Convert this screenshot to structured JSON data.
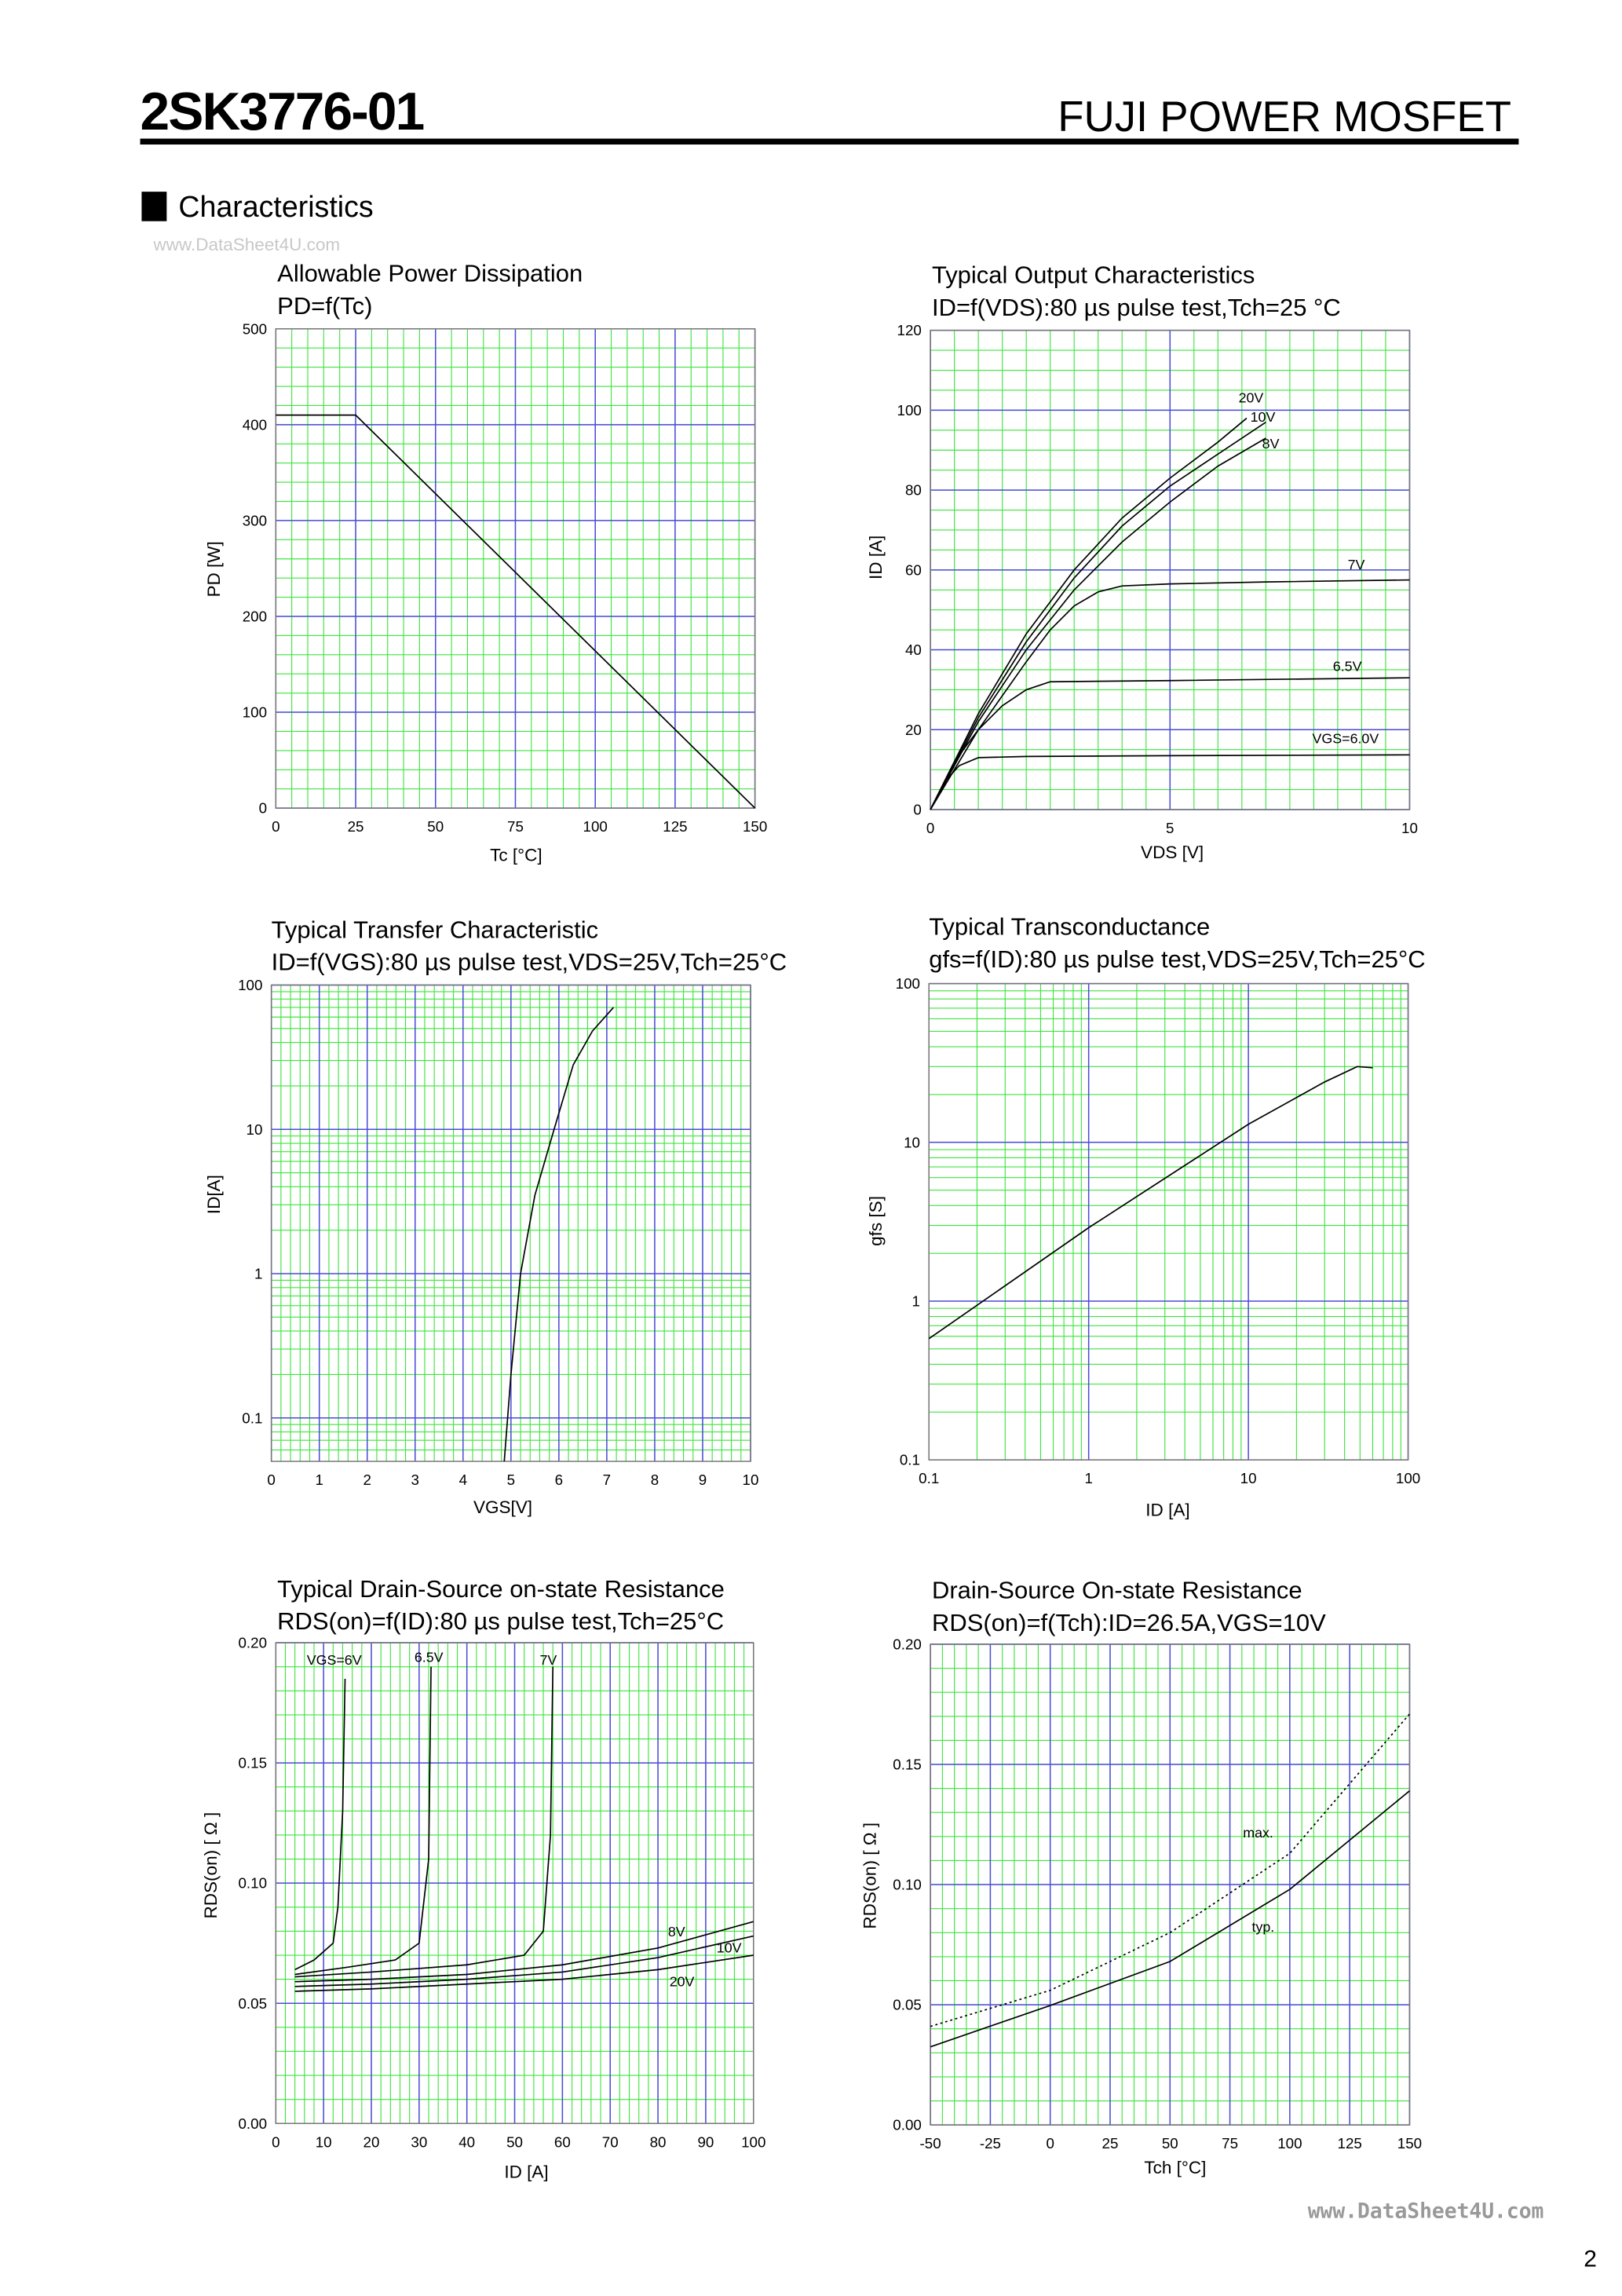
{
  "header": {
    "part_number": "2SK3776-01",
    "product": "FUJI POWER MOSFET"
  },
  "section": "Characteristics",
  "watermark": "www.DataSheet4U.com",
  "footer": {
    "watermark": "www.DataSheet4U.com",
    "page": "2"
  },
  "chart_data": [
    {
      "type": "line",
      "title": "Allowable Power Dissipation",
      "subtitle": "PD=f(Tc)",
      "x_label": "Tc [°C]",
      "y_label": "PD [W]",
      "xlim": [
        0,
        150
      ],
      "xticks": [
        0,
        25,
        50,
        75,
        100,
        125,
        150
      ],
      "ylim": [
        0,
        500
      ],
      "yticks": [
        0,
        100,
        200,
        300,
        400,
        500
      ],
      "grid": {
        "major_color": "#4a4ad8",
        "minor_color": "#3ee43e",
        "x_minor": 5,
        "y_minor": 5
      },
      "series": [
        {
          "color": "#000000",
          "x": [
            0,
            25,
            150
          ],
          "values": [
            410,
            410,
            0
          ]
        }
      ]
    },
    {
      "type": "line",
      "title": "Typical Output Characteristics",
      "subtitle": "ID=f(VDS):80 µs pulse test,Tch=25 °C",
      "x_label": "VDS [V]",
      "y_label": "ID [A]",
      "xlim": [
        0,
        10
      ],
      "xticks": [
        0,
        5,
        10
      ],
      "ylim": [
        0,
        120
      ],
      "yticks": [
        0,
        20,
        40,
        60,
        80,
        100,
        120
      ],
      "grid": {
        "major_color": "#4a4ad8",
        "minor_color": "#3ee43e",
        "x_minor": 10,
        "y_minor": 4
      },
      "series": [
        {
          "name": "20V",
          "color": "#000000",
          "x": [
            0,
            1,
            2,
            3,
            4,
            5,
            6,
            6.6
          ],
          "values": [
            0,
            24,
            44,
            60,
            73,
            83,
            92,
            98
          ]
        },
        {
          "name": "10V",
          "color": "#000000",
          "x": [
            0,
            1,
            2,
            3,
            4,
            5,
            6,
            7
          ],
          "values": [
            0,
            23,
            42,
            58,
            71,
            81,
            89,
            97
          ]
        },
        {
          "name": "8V",
          "color": "#000000",
          "x": [
            0,
            1,
            2,
            3,
            4,
            5,
            6,
            7
          ],
          "values": [
            0,
            22,
            40,
            55,
            67,
            77,
            86,
            93
          ]
        },
        {
          "name": "7V",
          "color": "#000000",
          "x": [
            0,
            1,
            2,
            2.5,
            3,
            3.5,
            4,
            5,
            7,
            10
          ],
          "values": [
            0,
            20,
            37,
            45,
            51,
            54.5,
            56,
            56.5,
            57,
            57.5
          ]
        },
        {
          "name": "6.5V",
          "color": "#000000",
          "x": [
            0,
            0.5,
            1,
            1.5,
            2,
            2.5,
            5,
            10
          ],
          "values": [
            0,
            12,
            20,
            26,
            30,
            32,
            32.3,
            33
          ]
        },
        {
          "name": "VGS=6.0V",
          "color": "#000000",
          "x": [
            0,
            0.3,
            0.6,
            1,
            2,
            5,
            10
          ],
          "values": [
            0,
            7,
            11,
            13,
            13.3,
            13.5,
            13.7
          ]
        }
      ]
    },
    {
      "type": "line",
      "title": "Typical Transfer Characteristic",
      "subtitle": "ID=f(VGS):80 µs pulse test,VDS=25V,Tch=25°C",
      "x_label": "VGS[V]",
      "y_label": "ID[A]",
      "xlim": [
        0,
        10
      ],
      "xticks": [
        0,
        1,
        2,
        3,
        4,
        5,
        6,
        7,
        8,
        9,
        10
      ],
      "ylim": [
        0.05,
        100
      ],
      "yticks": [
        0.1,
        1,
        10,
        100
      ],
      "ylog": true,
      "grid": {
        "major_color": "#4a4ad8",
        "minor_color": "#3ee43e",
        "x_minor": 5,
        "y_minor": 9
      },
      "series": [
        {
          "color": "#000000",
          "x": [
            4.86,
            5.0,
            5.2,
            5.5,
            5.9,
            6.3,
            6.7,
            7.14
          ],
          "values": [
            0.05,
            0.2,
            1,
            3.5,
            10,
            28,
            48,
            70
          ]
        }
      ]
    },
    {
      "type": "line",
      "title": "Typical Transconductance",
      "subtitle": "gfs=f(ID):80 µs pulse test,VDS=25V,Tch=25°C",
      "x_label": "ID [A]",
      "y_label": "gfs [S]",
      "xlim": [
        0.1,
        100
      ],
      "xticks": [
        0.1,
        1,
        10,
        100
      ],
      "xlog": true,
      "ylim": [
        0.1,
        100
      ],
      "yticks": [
        0.1,
        1,
        10,
        100
      ],
      "ylog": true,
      "grid": {
        "major_color": "#4a4ad8",
        "minor_color": "#3ee43e",
        "x_minor": 9,
        "y_minor": 9
      },
      "series": [
        {
          "color": "#000000",
          "x": [
            0.1,
            1,
            10,
            30,
            48,
            60
          ],
          "values": [
            0.58,
            2.9,
            13,
            24,
            30,
            29.5
          ]
        }
      ]
    },
    {
      "type": "line",
      "title": "Typical Drain-Source on-state Resistance",
      "subtitle": "RDS(on)=f(ID):80  µs pulse test,Tch=25°C",
      "x_label": "ID [A]",
      "y_label": "RDS(on) [ Ω ]",
      "xlim": [
        0,
        100
      ],
      "xticks": [
        0,
        10,
        20,
        30,
        40,
        50,
        60,
        70,
        80,
        90,
        100
      ],
      "ylim": [
        0,
        0.2
      ],
      "yticks": [
        {
          "value": 0,
          "label": "0.00"
        },
        {
          "value": 0.05,
          "label": "0.05"
        },
        {
          "value": 0.1,
          "label": "0.10"
        },
        {
          "value": 0.15,
          "label": "0.15"
        },
        {
          "value": 0.2,
          "label": "0.20"
        }
      ],
      "grid": {
        "major_color": "#4a4ad8",
        "minor_color": "#3ee43e",
        "x_minor": 5,
        "y_minor": 5
      },
      "series": [
        {
          "name": "VGS=6V",
          "color": "#000000",
          "x": [
            4,
            8,
            12,
            13,
            14,
            14.5
          ],
          "values": [
            0.064,
            0.068,
            0.075,
            0.09,
            0.13,
            0.185
          ]
        },
        {
          "name": "6.5V",
          "color": "#000000",
          "x": [
            4,
            15,
            25,
            30,
            32,
            32.5
          ],
          "values": [
            0.062,
            0.065,
            0.068,
            0.075,
            0.11,
            0.19
          ]
        },
        {
          "name": "7V",
          "color": "#000000",
          "x": [
            4,
            20,
            40,
            52,
            56,
            57.5,
            58
          ],
          "values": [
            0.061,
            0.063,
            0.066,
            0.07,
            0.08,
            0.12,
            0.19
          ]
        },
        {
          "name": "8V",
          "color": "#000000",
          "x": [
            4,
            20,
            40,
            60,
            80,
            100
          ],
          "values": [
            0.059,
            0.06,
            0.062,
            0.066,
            0.073,
            0.084
          ]
        },
        {
          "name": "10V",
          "color": "#000000",
          "x": [
            4,
            20,
            40,
            60,
            80,
            100
          ],
          "values": [
            0.057,
            0.058,
            0.06,
            0.063,
            0.069,
            0.078
          ]
        },
        {
          "name": "20V",
          "color": "#000000",
          "x": [
            4,
            20,
            40,
            60,
            80,
            100
          ],
          "values": [
            0.055,
            0.056,
            0.058,
            0.06,
            0.064,
            0.07
          ]
        }
      ]
    },
    {
      "type": "line",
      "title": "Drain-Source On-state Resistance",
      "subtitle": "RDS(on)=f(Tch):ID=26.5A,VGS=10V",
      "x_label": "Tch [°C]",
      "y_label": "RDS(on) [ Ω ]",
      "xlim": [
        -50,
        150
      ],
      "xticks": [
        -50,
        -25,
        0,
        25,
        50,
        75,
        100,
        125,
        150
      ],
      "ylim": [
        0,
        0.2
      ],
      "yticks": [
        {
          "value": 0,
          "label": "0.00"
        },
        {
          "value": 0.05,
          "label": "0.05"
        },
        {
          "value": 0.1,
          "label": "0.10"
        },
        {
          "value": 0.15,
          "label": "0.15"
        },
        {
          "value": 0.2,
          "label": "0.20"
        }
      ],
      "grid": {
        "major_color": "#4a4ad8",
        "minor_color": "#3ee43e",
        "x_minor": 5,
        "y_minor": 5
      },
      "series": [
        {
          "name": "max.",
          "color": "#000000",
          "dashed": true,
          "x": [
            -50,
            0,
            50,
            100,
            150
          ],
          "values": [
            0.041,
            0.056,
            0.08,
            0.113,
            0.171
          ]
        },
        {
          "name": "typ.",
          "color": "#000000",
          "x": [
            -50,
            0,
            50,
            100,
            150
          ],
          "values": [
            0.0325,
            0.0497,
            0.068,
            0.098,
            0.139
          ]
        }
      ]
    }
  ]
}
